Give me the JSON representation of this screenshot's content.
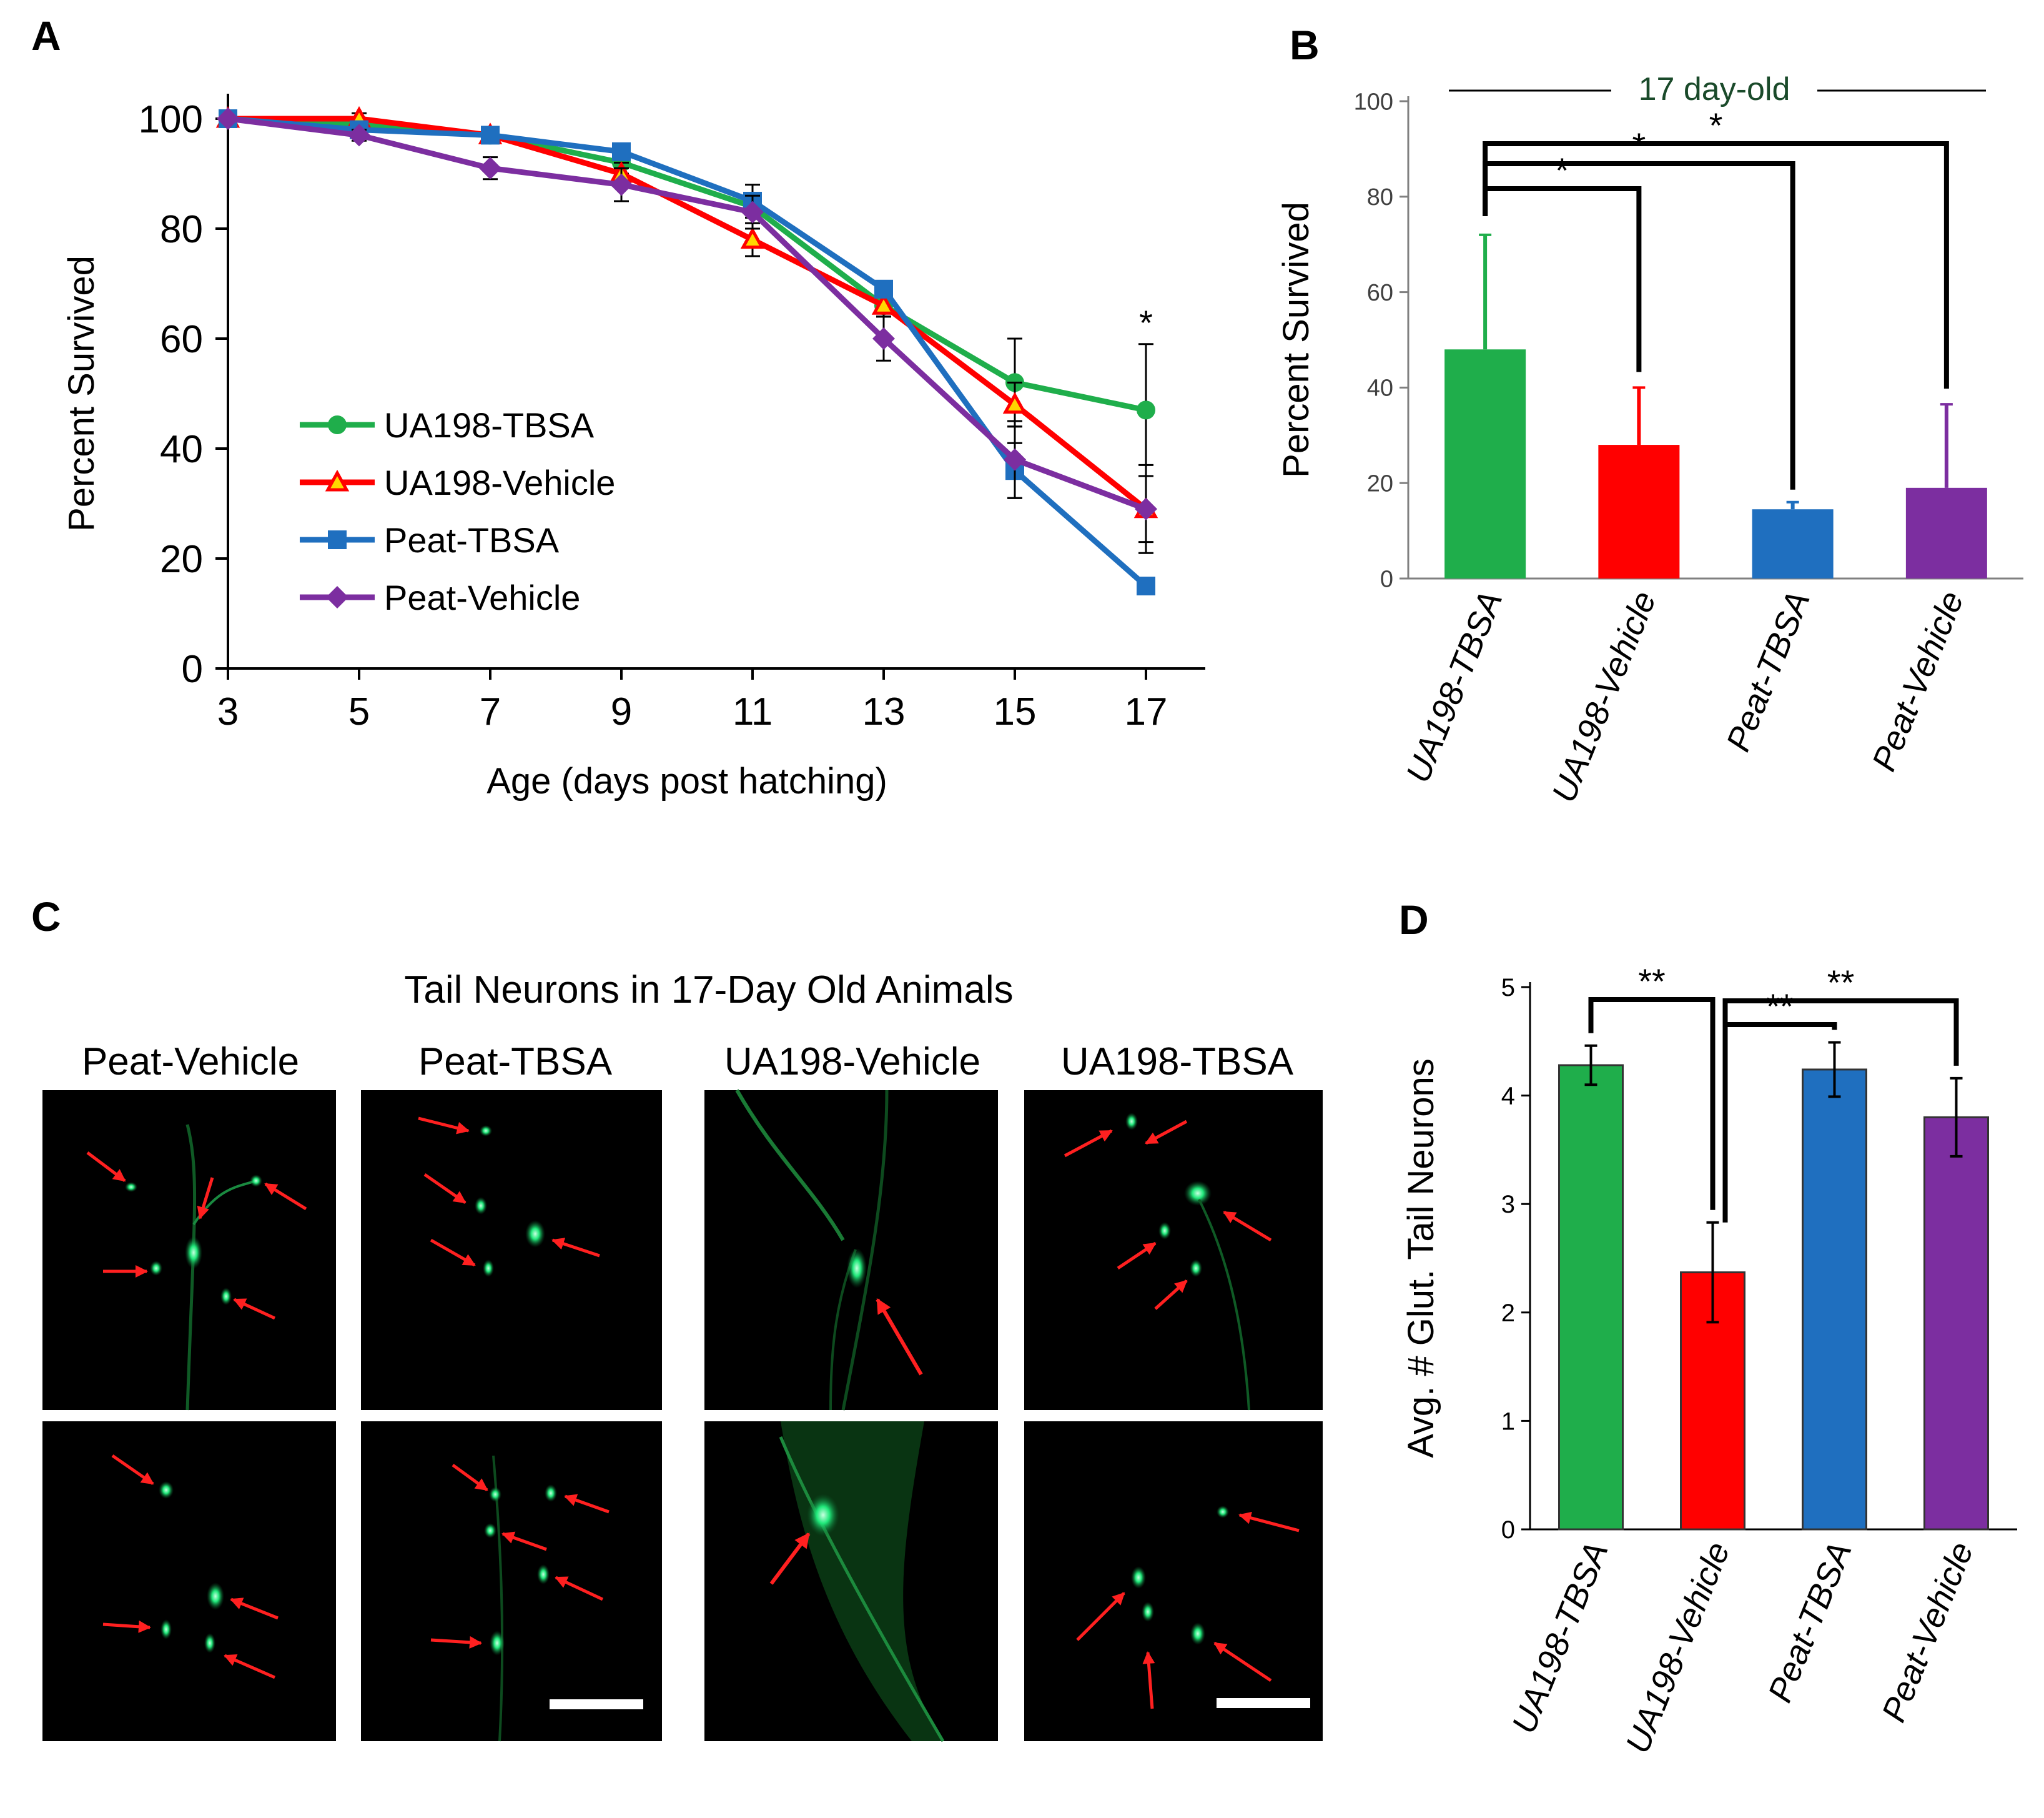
{
  "colors": {
    "green": "#1fae4b",
    "red": "#ff0000",
    "blue": "#1f6fbf",
    "purple": "#7c2ea0",
    "arrow": "#ff2020",
    "neuron": "#20e87a"
  },
  "panels": {
    "a": {
      "letter": "A"
    },
    "b": {
      "letter": "B",
      "header": "17 day-old"
    },
    "c": {
      "letter": "C",
      "title": "Tail Neurons in 17-Day Old Animals",
      "columns": [
        "Peat-Vehicle",
        "Peat-TBSA",
        "UA198-Vehicle",
        "UA198-TBSA"
      ]
    },
    "d": {
      "letter": "D"
    }
  },
  "chart_data": [
    {
      "panel": "A",
      "type": "line",
      "title": "",
      "xlabel": "Age (days post hatching)",
      "ylabel": "Percent Survived",
      "x": [
        3,
        5,
        7,
        9,
        11,
        13,
        15,
        17
      ],
      "xticks": [
        "3",
        "5",
        "7",
        "9",
        "11",
        "13",
        "15",
        "17"
      ],
      "yticks": [
        "0",
        "20",
        "40",
        "60",
        "80",
        "100"
      ],
      "ylim": [
        0,
        100
      ],
      "legend_position": "lower-left",
      "annotations": [
        {
          "x": 17,
          "text": "*"
        }
      ],
      "series": [
        {
          "name": "UA198-TBSA",
          "color": "green",
          "marker": "circle",
          "values": [
            100,
            99,
            97,
            92,
            84,
            66,
            52,
            47
          ],
          "err": [
            0,
            1,
            1,
            2,
            2,
            2,
            8,
            12
          ]
        },
        {
          "name": "UA198-Vehicle",
          "color": "red",
          "marker": "triangle",
          "values": [
            100,
            100,
            97,
            90,
            78,
            66,
            48,
            29
          ],
          "err": [
            0,
            1,
            1,
            2,
            3,
            2,
            4,
            8
          ]
        },
        {
          "name": "Peat-TBSA",
          "color": "blue",
          "marker": "square",
          "values": [
            100,
            98,
            97,
            94,
            85,
            69,
            36,
            15
          ],
          "err": [
            0,
            1,
            1,
            1,
            3,
            1,
            5,
            0
          ]
        },
        {
          "name": "Peat-Vehicle",
          "color": "purple",
          "marker": "diamond",
          "values": [
            100,
            97,
            91,
            88,
            83,
            60,
            38,
            29
          ],
          "err": [
            0,
            1,
            2,
            3,
            3,
            4,
            7,
            6
          ]
        }
      ]
    },
    {
      "panel": "B",
      "type": "bar",
      "title": "17 day-old",
      "xlabel": "",
      "ylabel": "Percent Survived",
      "categories": [
        "UA198-TBSA",
        "UA198-Vehicle",
        "Peat-TBSA",
        "Peat-Vehicle"
      ],
      "values": [
        48,
        28,
        14.5,
        19
      ],
      "err": [
        24,
        12,
        1.5,
        17.5
      ],
      "colors": [
        "green",
        "red",
        "blue",
        "purple"
      ],
      "yticks": [
        "0",
        "20",
        "40",
        "60",
        "80",
        "100"
      ],
      "ylim": [
        0,
        100
      ],
      "significance": [
        {
          "from": 0,
          "to": 1,
          "label": "*"
        },
        {
          "from": 0,
          "to": 2,
          "label": "*"
        },
        {
          "from": 0,
          "to": 3,
          "label": "*"
        }
      ]
    },
    {
      "panel": "D",
      "type": "bar",
      "title": "",
      "xlabel": "",
      "ylabel": "Avg. # Glut. Tail Neurons",
      "categories": [
        "UA198-TBSA",
        "UA198-Vehicle",
        "Peat-TBSA",
        "Peat-Vehicle"
      ],
      "values": [
        4.28,
        2.37,
        4.24,
        3.8
      ],
      "err": [
        0.18,
        0.46,
        0.25,
        0.36
      ],
      "colors": [
        "green",
        "red",
        "blue",
        "purple"
      ],
      "yticks": [
        "0",
        "1",
        "2",
        "3",
        "4",
        "5"
      ],
      "ylim": [
        0,
        5
      ],
      "significance": [
        {
          "from": 0,
          "to": 1,
          "label": "**"
        },
        {
          "from": 1,
          "to": 2,
          "label": "**"
        },
        {
          "from": 1,
          "to": 3,
          "label": "**"
        }
      ]
    }
  ]
}
